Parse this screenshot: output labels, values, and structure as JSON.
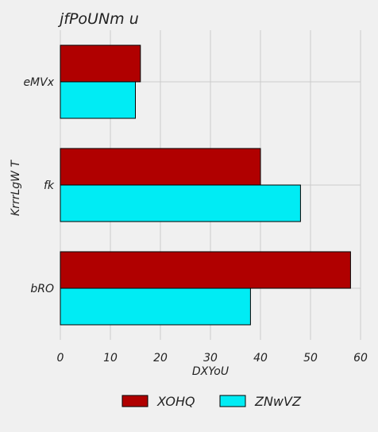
{
  "chart_data": {
    "type": "bar",
    "orientation": "horizontal",
    "title": "jfPoUNm  u",
    "xlabel": "DXYoU",
    "ylabel": "KrrrLgW T",
    "categories": [
      "bRO",
      "fk",
      "eMVx"
    ],
    "series": [
      {
        "name": "XOHQ",
        "values": [
          58,
          40,
          16
        ],
        "color": "#b00000"
      },
      {
        "name": "ZNwVZ",
        "values": [
          38,
          48,
          15
        ],
        "color": "#00ecf4"
      }
    ],
    "xlim": [
      0,
      60
    ],
    "xticks": [
      0,
      10,
      20,
      30,
      40,
      50,
      60
    ],
    "grid": true,
    "legend_position": "bottom"
  }
}
